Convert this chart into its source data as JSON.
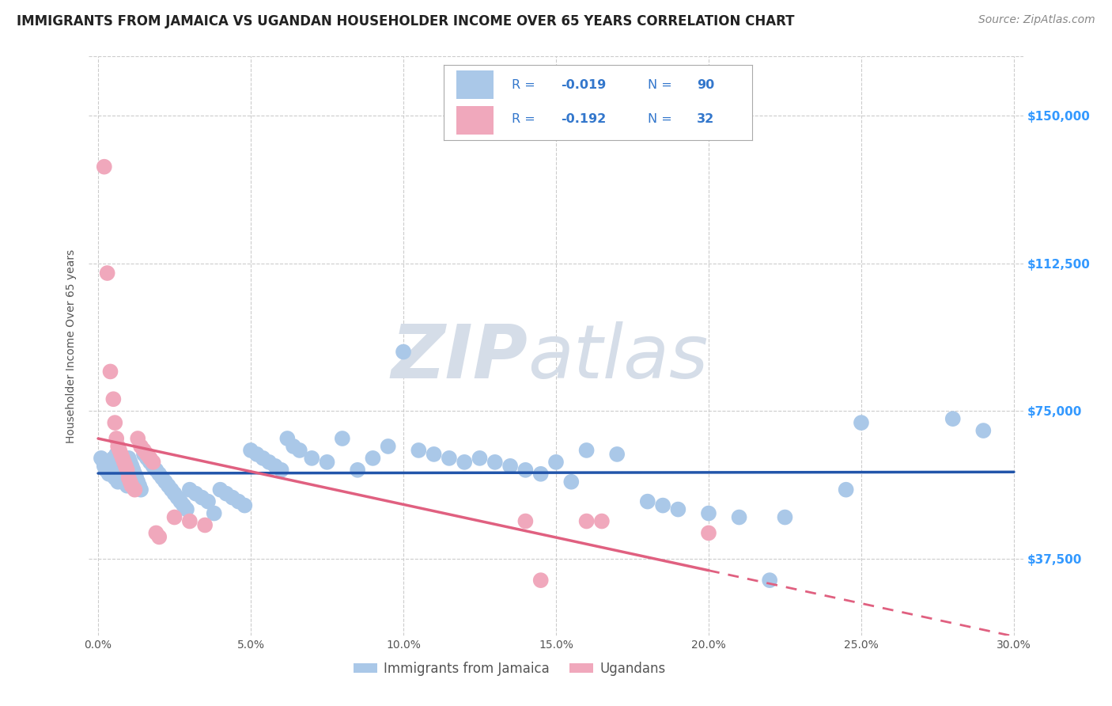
{
  "title": "IMMIGRANTS FROM JAMAICA VS UGANDAN HOUSEHOLDER INCOME OVER 65 YEARS CORRELATION CHART",
  "source": "Source: ZipAtlas.com",
  "ylabel": "Householder Income Over 65 years",
  "xlabel_ticks": [
    "0.0%",
    "5.0%",
    "10.0%",
    "15.0%",
    "20.0%",
    "25.0%",
    "30.0%"
  ],
  "xlabel_vals": [
    0.0,
    5.0,
    10.0,
    15.0,
    20.0,
    25.0,
    30.0
  ],
  "ytick_labels": [
    "$37,500",
    "$75,000",
    "$112,500",
    "$150,000"
  ],
  "ytick_vals": [
    37500,
    75000,
    112500,
    150000
  ],
  "xlim": [
    -0.3,
    30.3
  ],
  "ylim": [
    18000,
    165000
  ],
  "jamaica_line_color": "#2255aa",
  "uganda_line_color": "#e06080",
  "jamaica_dot_color": "#aac8e8",
  "uganda_dot_color": "#f0a8bc",
  "background_color": "#ffffff",
  "grid_color": "#cccccc",
  "watermark_zip": "ZIP",
  "watermark_atlas": "atlas",
  "watermark_color": "#d5dde8",
  "title_fontsize": 12,
  "axis_label_fontsize": 10,
  "tick_fontsize": 10,
  "source_fontsize": 10,
  "legend_text_color": "#3377cc",
  "jamaica_points": [
    [
      0.1,
      63000
    ],
    [
      0.15,
      62500
    ],
    [
      0.2,
      61000
    ],
    [
      0.25,
      60000
    ],
    [
      0.3,
      62000
    ],
    [
      0.35,
      59000
    ],
    [
      0.4,
      61000
    ],
    [
      0.45,
      60000
    ],
    [
      0.5,
      63000
    ],
    [
      0.55,
      58000
    ],
    [
      0.6,
      64000
    ],
    [
      0.65,
      57000
    ],
    [
      0.7,
      62000
    ],
    [
      0.75,
      60000
    ],
    [
      0.8,
      59000
    ],
    [
      0.85,
      58000
    ],
    [
      0.9,
      57000
    ],
    [
      0.95,
      56000
    ],
    [
      1.0,
      63000
    ],
    [
      1.05,
      62000
    ],
    [
      1.1,
      61000
    ],
    [
      1.15,
      60000
    ],
    [
      1.2,
      59000
    ],
    [
      1.25,
      58000
    ],
    [
      1.3,
      57000
    ],
    [
      1.35,
      56000
    ],
    [
      1.4,
      55000
    ],
    [
      1.5,
      64000
    ],
    [
      1.6,
      63000
    ],
    [
      1.7,
      62000
    ],
    [
      1.8,
      61000
    ],
    [
      1.9,
      60000
    ],
    [
      2.0,
      59000
    ],
    [
      2.1,
      58000
    ],
    [
      2.2,
      57000
    ],
    [
      2.3,
      56000
    ],
    [
      2.4,
      55000
    ],
    [
      2.5,
      54000
    ],
    [
      2.6,
      53000
    ],
    [
      2.7,
      52000
    ],
    [
      2.8,
      51000
    ],
    [
      2.9,
      50000
    ],
    [
      3.0,
      55000
    ],
    [
      3.2,
      54000
    ],
    [
      3.4,
      53000
    ],
    [
      3.6,
      52000
    ],
    [
      3.8,
      49000
    ],
    [
      4.0,
      55000
    ],
    [
      4.2,
      54000
    ],
    [
      4.4,
      53000
    ],
    [
      4.6,
      52000
    ],
    [
      4.8,
      51000
    ],
    [
      5.0,
      65000
    ],
    [
      5.2,
      64000
    ],
    [
      5.4,
      63000
    ],
    [
      5.6,
      62000
    ],
    [
      5.8,
      61000
    ],
    [
      6.0,
      60000
    ],
    [
      6.2,
      68000
    ],
    [
      6.4,
      66000
    ],
    [
      6.6,
      65000
    ],
    [
      7.0,
      63000
    ],
    [
      7.5,
      62000
    ],
    [
      8.0,
      68000
    ],
    [
      8.5,
      60000
    ],
    [
      9.0,
      63000
    ],
    [
      9.5,
      66000
    ],
    [
      10.0,
      90000
    ],
    [
      10.5,
      65000
    ],
    [
      11.0,
      64000
    ],
    [
      11.5,
      63000
    ],
    [
      12.0,
      62000
    ],
    [
      12.5,
      63000
    ],
    [
      13.0,
      62000
    ],
    [
      13.5,
      61000
    ],
    [
      14.0,
      60000
    ],
    [
      14.5,
      59000
    ],
    [
      15.0,
      62000
    ],
    [
      15.5,
      57000
    ],
    [
      16.0,
      65000
    ],
    [
      17.0,
      64000
    ],
    [
      18.0,
      52000
    ],
    [
      18.5,
      51000
    ],
    [
      19.0,
      50000
    ],
    [
      20.0,
      49000
    ],
    [
      21.0,
      48000
    ],
    [
      22.0,
      32000
    ],
    [
      22.5,
      48000
    ],
    [
      24.5,
      55000
    ],
    [
      25.0,
      72000
    ],
    [
      28.0,
      73000
    ],
    [
      29.0,
      70000
    ]
  ],
  "uganda_points": [
    [
      0.2,
      137000
    ],
    [
      0.3,
      110000
    ],
    [
      0.4,
      85000
    ],
    [
      0.5,
      78000
    ],
    [
      0.55,
      72000
    ],
    [
      0.6,
      68000
    ],
    [
      0.65,
      66000
    ],
    [
      0.7,
      65000
    ],
    [
      0.75,
      64000
    ],
    [
      0.8,
      63000
    ],
    [
      0.85,
      62000
    ],
    [
      0.9,
      61000
    ],
    [
      0.95,
      60000
    ],
    [
      1.0,
      58000
    ],
    [
      1.05,
      57000
    ],
    [
      1.1,
      56000
    ],
    [
      1.2,
      55000
    ],
    [
      1.3,
      68000
    ],
    [
      1.4,
      66000
    ],
    [
      1.5,
      65000
    ],
    [
      1.6,
      64000
    ],
    [
      1.7,
      63000
    ],
    [
      1.8,
      62000
    ],
    [
      1.9,
      44000
    ],
    [
      2.0,
      43000
    ],
    [
      2.5,
      48000
    ],
    [
      3.0,
      47000
    ],
    [
      3.5,
      46000
    ],
    [
      14.0,
      47000
    ],
    [
      16.0,
      47000
    ],
    [
      20.0,
      44000
    ],
    [
      14.5,
      32000
    ],
    [
      16.5,
      47000
    ]
  ]
}
